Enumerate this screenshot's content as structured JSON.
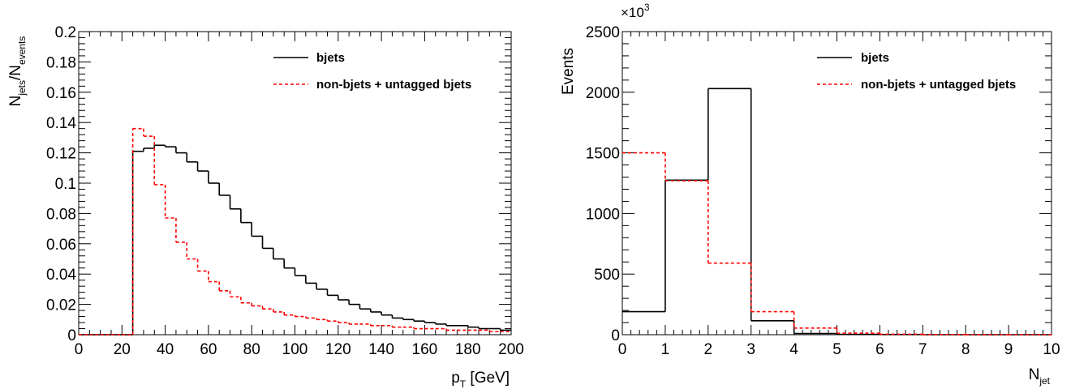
{
  "colors": {
    "bjets": "#000000",
    "nonbjets": "#ff0000"
  },
  "chart_data": [
    {
      "type": "line",
      "style": "step-histogram",
      "xlabel": {
        "main": "p",
        "sub": "T",
        "suffix": " [GeV]"
      },
      "ylabel": {
        "p1": "N",
        "s1": "jets",
        "p2": "/N",
        "s2": "events"
      },
      "xlim": [
        0,
        200
      ],
      "ylim": [
        0,
        0.2
      ],
      "xticks": [
        "0",
        "20",
        "40",
        "60",
        "80",
        "100",
        "120",
        "140",
        "160",
        "180",
        "200"
      ],
      "yticks": [
        "0",
        "0.02",
        "0.04",
        "0.06",
        "0.08",
        "0.1",
        "0.12",
        "0.14",
        "0.16",
        "0.18",
        "0.2"
      ],
      "bin_width": 5,
      "legend": {
        "position": "top-right"
      },
      "series": [
        {
          "name": "bjets",
          "line_style": "solid",
          "values": [
            0,
            0,
            0,
            0,
            0,
            0.121,
            0.123,
            0.125,
            0.124,
            0.12,
            0.114,
            0.108,
            0.1,
            0.092,
            0.083,
            0.074,
            0.065,
            0.057,
            0.05,
            0.044,
            0.039,
            0.034,
            0.03,
            0.026,
            0.023,
            0.02,
            0.017,
            0.015,
            0.013,
            0.011,
            0.01,
            0.009,
            0.008,
            0.007,
            0.006,
            0.006,
            0.005,
            0.004,
            0.004,
            0.003
          ]
        },
        {
          "name": "non-bjets + untagged bjets",
          "line_style": "dashed",
          "values": [
            0,
            0,
            0,
            0,
            0,
            0.136,
            0.131,
            0.099,
            0.077,
            0.061,
            0.05,
            0.042,
            0.035,
            0.029,
            0.025,
            0.021,
            0.019,
            0.017,
            0.015,
            0.013,
            0.012,
            0.011,
            0.01,
            0.009,
            0.008,
            0.007,
            0.007,
            0.006,
            0.006,
            0.005,
            0.005,
            0.004,
            0.004,
            0.004,
            0.003,
            0.003,
            0.003,
            0.003,
            0.002,
            0.002
          ]
        }
      ]
    },
    {
      "type": "line",
      "style": "step-histogram",
      "xlabel": {
        "main": "N",
        "sub": "jet",
        "suffix": ""
      },
      "ylabel": {
        "text": "Events"
      },
      "multiplier": {
        "base": "×10",
        "exp": "3"
      },
      "xlim": [
        0,
        10
      ],
      "ylim": [
        0,
        2500
      ],
      "xticks": [
        "0",
        "1",
        "2",
        "3",
        "4",
        "5",
        "6",
        "7",
        "8",
        "9",
        "10"
      ],
      "yticks": [
        "0",
        "500",
        "1000",
        "1500",
        "2000",
        "2500"
      ],
      "bin_width": 1,
      "legend": {
        "position": "top-right"
      },
      "series": [
        {
          "name": "bjets",
          "line_style": "solid",
          "values": [
            190,
            1275,
            2030,
            115,
            10,
            2,
            1,
            0,
            0,
            0
          ]
        },
        {
          "name": "non-bjets + untagged bjets",
          "line_style": "dashed",
          "values": [
            1500,
            1270,
            590,
            190,
            55,
            12,
            4,
            1,
            0,
            0
          ]
        }
      ]
    }
  ]
}
